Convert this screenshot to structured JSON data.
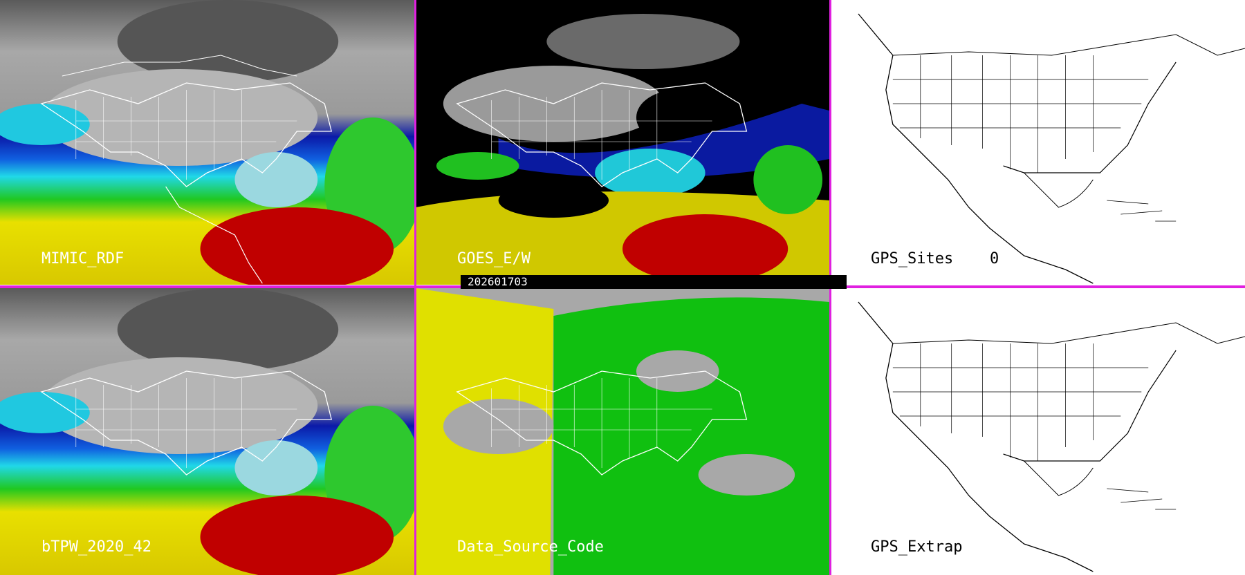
{
  "timestamp": "202601703",
  "panels": {
    "mimic": {
      "label": "MIMIC_RDF"
    },
    "goes": {
      "label": "GOES_E/W"
    },
    "gps_sites": {
      "label": "GPS_Sites",
      "count": "0"
    },
    "btpw": {
      "label": "bTPW_2020_42"
    },
    "data_source": {
      "label": "Data_Source_Code"
    },
    "gps_extrap": {
      "label": "GPS_Extrap"
    }
  },
  "colors": {
    "separator": "#e020e0",
    "tpw_gray": "#8a8a8a",
    "tpw_blue": "#0a1aa0",
    "tpw_cyan": "#22d6e6",
    "tpw_green": "#22c022",
    "tpw_yellow": "#e8e000",
    "tpw_red": "#c00000",
    "source_yellow": "#e0e000",
    "source_green": "#10c010",
    "source_gray": "#a8a8a8"
  }
}
